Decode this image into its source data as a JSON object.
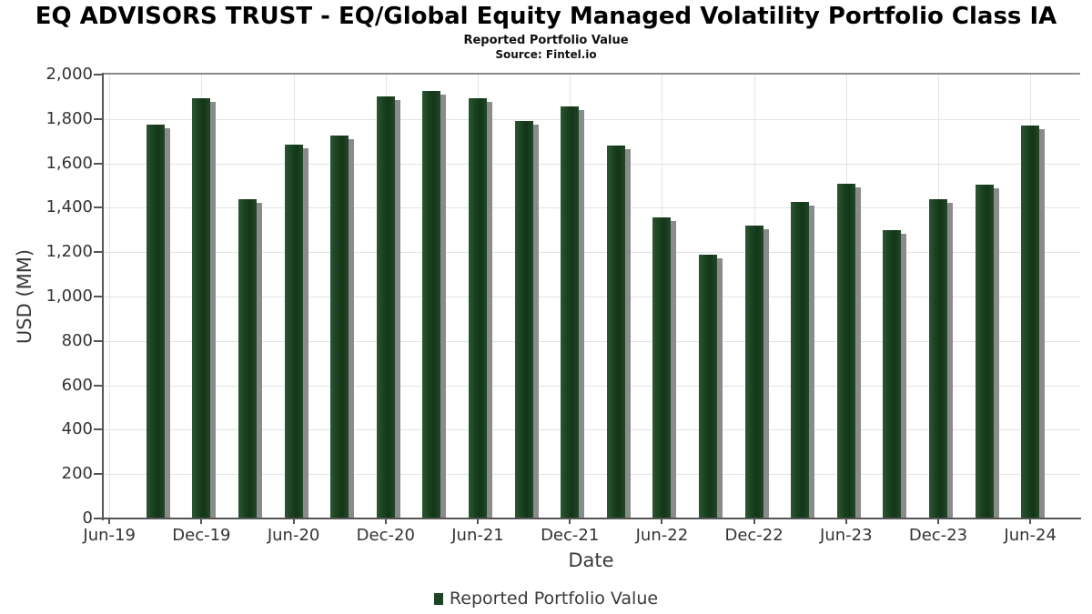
{
  "title": "EQ ADVISORS TRUST - EQ/Global Equity Managed Volatility Portfolio Class IA",
  "subtitle": "Reported Portfolio Value",
  "source": "Source: Fintel.io",
  "legend": {
    "label": "Reported Portfolio Value",
    "marker_color": "#1c4424"
  },
  "colors": {
    "bar": "#1c4424",
    "bar_shadow": "#8b8b8b",
    "grid": "#e3e3e3",
    "axis": "#555555",
    "tick_text": "#333333",
    "axis_title_text": "#3a3a3a"
  },
  "chart_data": {
    "type": "bar",
    "title": "EQ ADVISORS TRUST - EQ/Global Equity Managed Volatility Portfolio Class IA",
    "subtitle": "Reported Portfolio Value",
    "source": "Source: Fintel.io",
    "x": [
      "Sep-19",
      "Dec-19",
      "Mar-20",
      "Jun-20",
      "Sep-20",
      "Dec-20",
      "Mar-21",
      "Jun-21",
      "Sep-21",
      "Dec-21",
      "Mar-22",
      "Jun-22",
      "Sep-22",
      "Dec-22",
      "Mar-23",
      "Jun-23",
      "Sep-23",
      "Dec-23",
      "Mar-24",
      "Jun-24"
    ],
    "values": [
      1775,
      1895,
      1440,
      1685,
      1725,
      1900,
      1925,
      1895,
      1790,
      1855,
      1680,
      1355,
      1190,
      1320,
      1425,
      1510,
      1300,
      1440,
      1505,
      1770
    ],
    "x_tick_labels": [
      "Jun-19",
      "Dec-19",
      "Jun-20",
      "Dec-20",
      "Jun-21",
      "Dec-21",
      "Jun-22",
      "Dec-22",
      "Jun-23",
      "Dec-23",
      "Jun-24"
    ],
    "y_ticks": [
      0,
      200,
      400,
      600,
      800,
      1000,
      1200,
      1400,
      1600,
      1800,
      2000
    ],
    "ylim": [
      0,
      2000
    ],
    "xlabel": "Date",
    "ylabel": "USD (MM)",
    "legend": [
      "Reported Portfolio Value"
    ],
    "legend_position": "bottom",
    "grid": true
  }
}
